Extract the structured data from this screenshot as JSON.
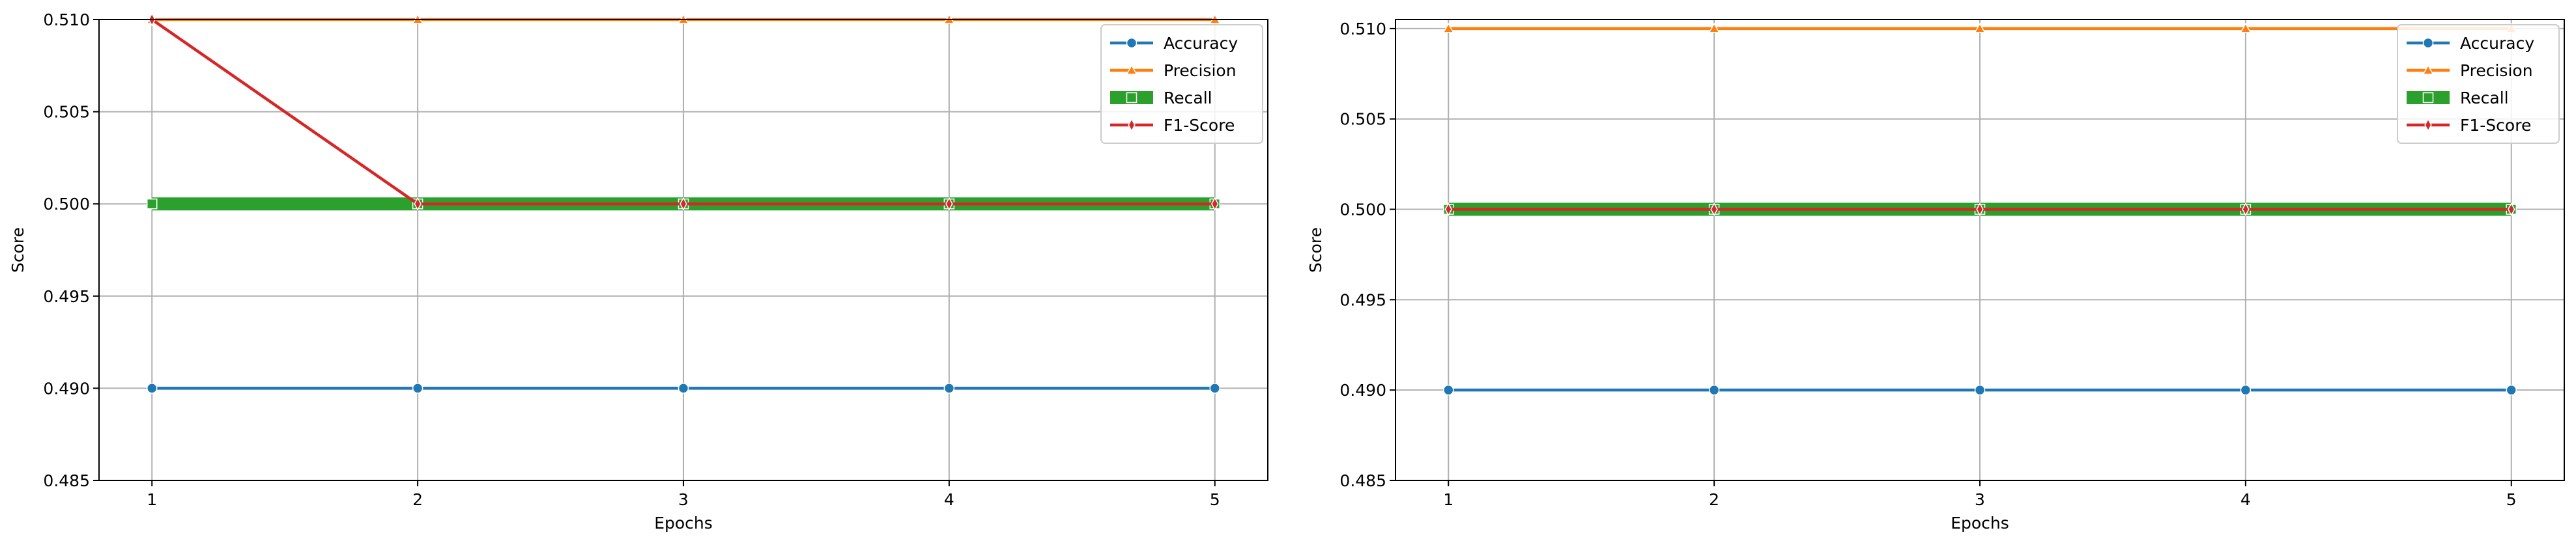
{
  "chart_data": [
    {
      "type": "line",
      "title": "",
      "xlabel": "Epochs",
      "ylabel": "Score",
      "x": [
        1,
        2,
        3,
        4,
        5
      ],
      "xticks": [
        "1",
        "2",
        "3",
        "4",
        "5"
      ],
      "ylim": [
        0.485,
        0.51
      ],
      "yticks": [
        "0.485",
        "0.490",
        "0.495",
        "0.500",
        "0.505",
        "0.510"
      ],
      "grid": true,
      "legend_position": "top-right",
      "series": [
        {
          "name": "Accuracy",
          "values": [
            0.49,
            0.49,
            0.49,
            0.49,
            0.49
          ],
          "color": "#1f77b4",
          "marker": "circle",
          "linewidth": "normal"
        },
        {
          "name": "Precision",
          "values": [
            0.51,
            0.51,
            0.51,
            0.51,
            0.51
          ],
          "color": "#ff7f0e",
          "marker": "triangle",
          "linewidth": "normal"
        },
        {
          "name": "Recall",
          "values": [
            0.5,
            0.5,
            0.5,
            0.5,
            0.5
          ],
          "color": "#2ca02c",
          "marker": "square",
          "linewidth": "thick"
        },
        {
          "name": "F1-Score",
          "values": [
            0.51,
            0.5,
            0.5,
            0.5,
            0.5
          ],
          "color": "#d62728",
          "marker": "diamond",
          "linewidth": "normal"
        }
      ]
    },
    {
      "type": "line",
      "title": "",
      "xlabel": "Epochs",
      "ylabel": "Score",
      "x": [
        1,
        2,
        3,
        4,
        5
      ],
      "xticks": [
        "1",
        "2",
        "3",
        "4",
        "5"
      ],
      "ylim": [
        0.485,
        0.5105
      ],
      "yticks": [
        "0.485",
        "0.490",
        "0.495",
        "0.500",
        "0.505",
        "0.510"
      ],
      "grid": true,
      "legend_position": "top-right",
      "series": [
        {
          "name": "Accuracy",
          "values": [
            0.49,
            0.49,
            0.49,
            0.49,
            0.49
          ],
          "color": "#1f77b4",
          "marker": "circle",
          "linewidth": "normal"
        },
        {
          "name": "Precision",
          "values": [
            0.51,
            0.51,
            0.51,
            0.51,
            0.51
          ],
          "color": "#ff7f0e",
          "marker": "triangle",
          "linewidth": "normal"
        },
        {
          "name": "Recall",
          "values": [
            0.5,
            0.5,
            0.5,
            0.5,
            0.5
          ],
          "color": "#2ca02c",
          "marker": "square",
          "linewidth": "thick"
        },
        {
          "name": "F1-Score",
          "values": [
            0.5,
            0.5,
            0.5,
            0.5,
            0.5
          ],
          "color": "#d62728",
          "marker": "diamond",
          "linewidth": "normal"
        }
      ]
    }
  ]
}
